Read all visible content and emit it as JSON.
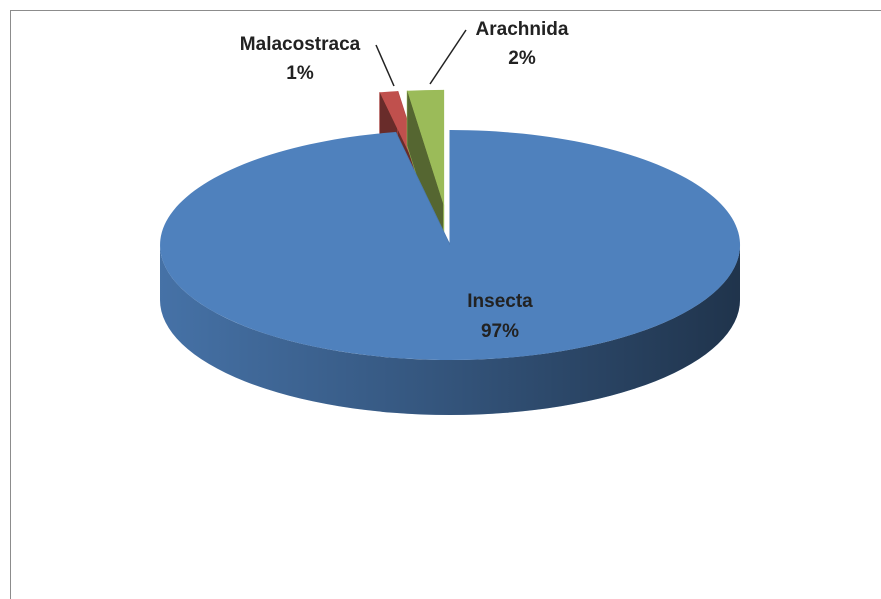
{
  "chart_data": {
    "type": "pie3d",
    "categories": [
      "Insecta",
      "Malacostraca",
      "Arachnida"
    ],
    "values": [
      97,
      1,
      2
    ],
    "value_labels": [
      "97%",
      "1%",
      "2%"
    ],
    "colors": [
      "#4f81bd",
      "#c0504d",
      "#9bbb59"
    ]
  }
}
